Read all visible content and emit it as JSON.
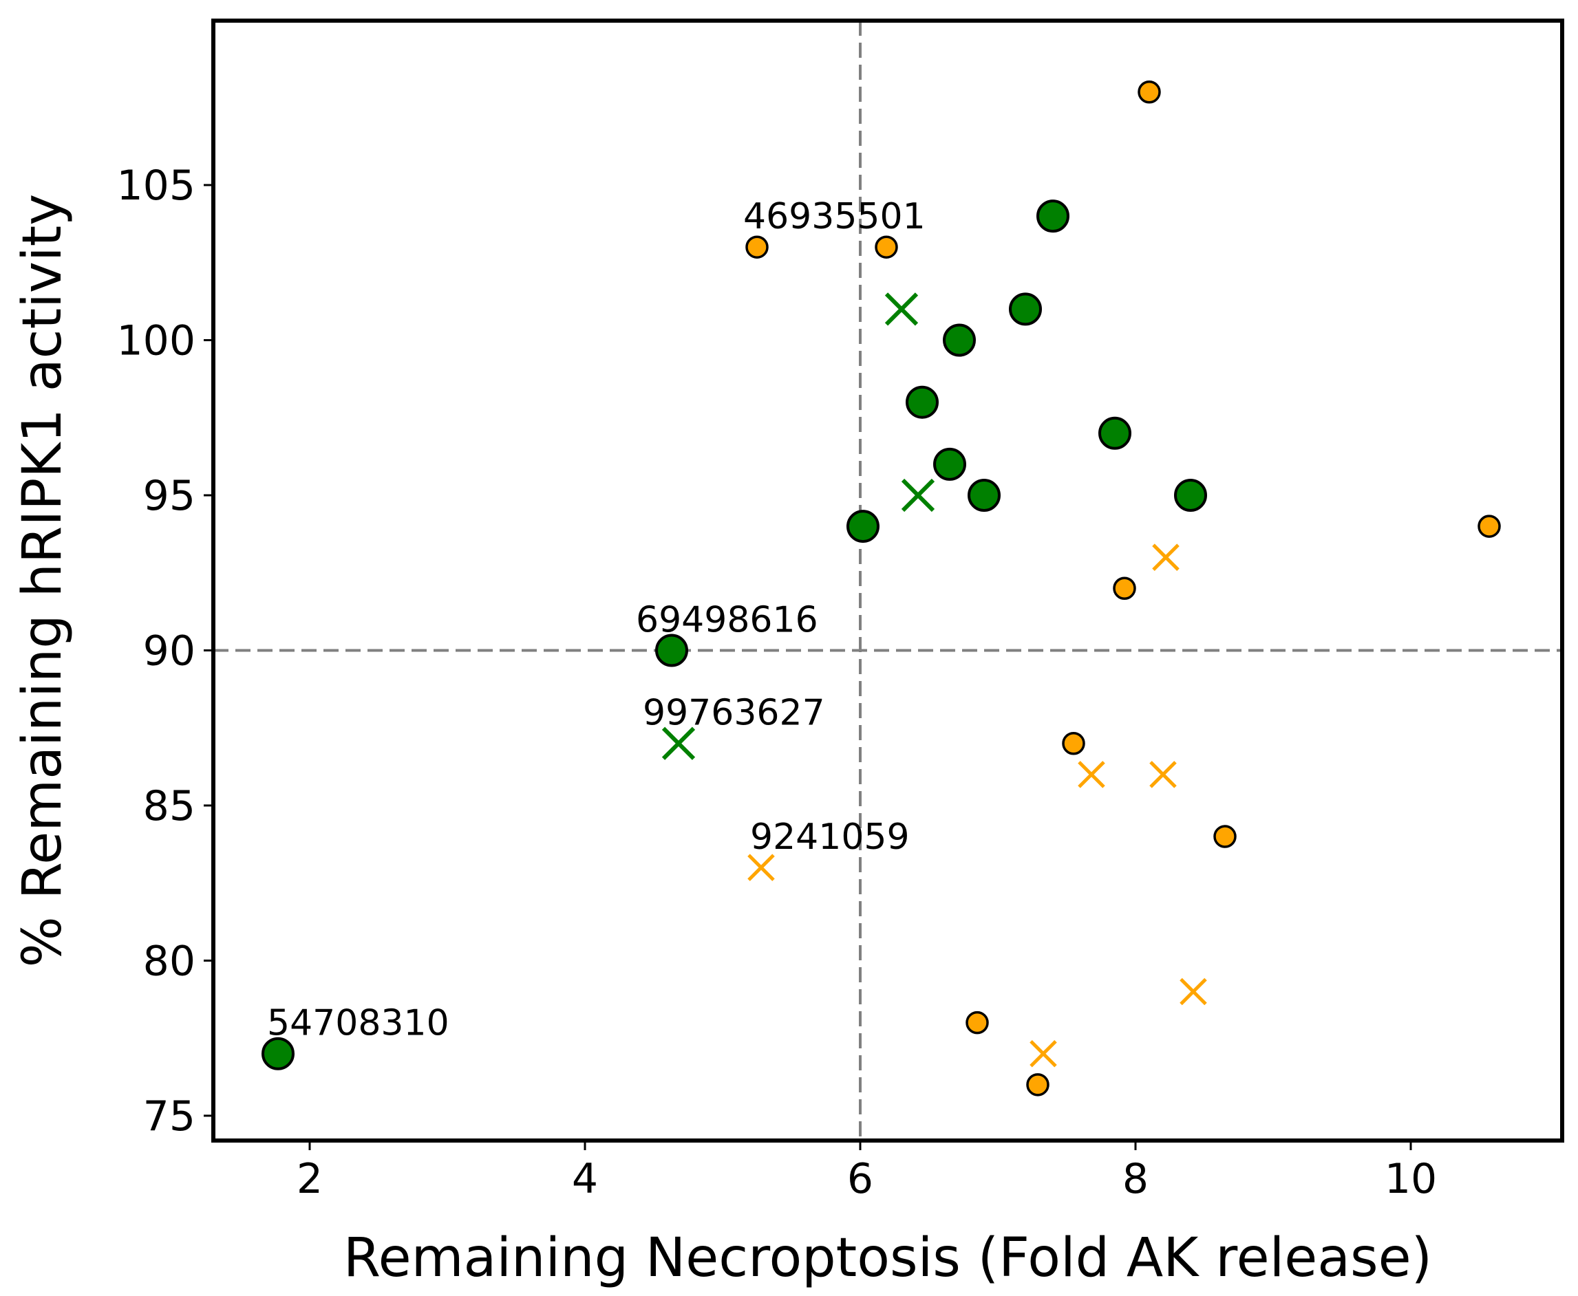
{
  "chart_data": {
    "type": "scatter",
    "title": "",
    "xlabel": "Remaining Necroptosis (Fold AK release)",
    "ylabel": "% Remaining hRIPK1 activity",
    "xlim": [
      1.3,
      11.1
    ],
    "ylim": [
      74.2,
      110.3
    ],
    "xticks": [
      2,
      4,
      6,
      8,
      10
    ],
    "yticks": [
      75,
      80,
      85,
      90,
      95,
      100,
      105
    ],
    "grid": false,
    "threshold_lines": {
      "x": 6,
      "y": 90
    },
    "colors": {
      "green": "#008000",
      "orange": "#FFA500",
      "threshold": "#808080",
      "edge": "#000000"
    },
    "series": [
      {
        "name": "green-circle-large",
        "marker": "circle-large",
        "color": "#008000",
        "points": [
          {
            "x": 7.4,
            "y": 104
          },
          {
            "x": 7.2,
            "y": 101
          },
          {
            "x": 6.72,
            "y": 100
          },
          {
            "x": 6.45,
            "y": 98
          },
          {
            "x": 7.85,
            "y": 97
          },
          {
            "x": 6.65,
            "y": 96
          },
          {
            "x": 6.9,
            "y": 95
          },
          {
            "x": 8.4,
            "y": 95
          },
          {
            "x": 6.02,
            "y": 94
          },
          {
            "x": 4.63,
            "y": 90
          },
          {
            "x": 1.77,
            "y": 77
          }
        ]
      },
      {
        "name": "green-x",
        "marker": "x",
        "color": "#008000",
        "points": [
          {
            "x": 6.3,
            "y": 101
          },
          {
            "x": 6.42,
            "y": 95
          },
          {
            "x": 4.68,
            "y": 87
          }
        ]
      },
      {
        "name": "orange-circle-small",
        "marker": "circle-small",
        "color": "#FFA500",
        "points": [
          {
            "x": 8.1,
            "y": 108
          },
          {
            "x": 5.25,
            "y": 103
          },
          {
            "x": 6.19,
            "y": 103
          },
          {
            "x": 10.57,
            "y": 94
          },
          {
            "x": 7.92,
            "y": 92
          },
          {
            "x": 7.55,
            "y": 87
          },
          {
            "x": 8.65,
            "y": 84
          },
          {
            "x": 6.85,
            "y": 78
          },
          {
            "x": 7.29,
            "y": 76
          }
        ]
      },
      {
        "name": "orange-x",
        "marker": "x",
        "color": "#FFA500",
        "points": [
          {
            "x": 8.22,
            "y": 93
          },
          {
            "x": 7.68,
            "y": 86
          },
          {
            "x": 8.2,
            "y": 86
          },
          {
            "x": 5.28,
            "y": 83
          },
          {
            "x": 8.42,
            "y": 79
          },
          {
            "x": 7.33,
            "y": 77
          }
        ]
      }
    ],
    "annotations": [
      {
        "text": "46935501",
        "x": 5.15,
        "y": 103.6
      },
      {
        "text": "69498616",
        "x": 4.37,
        "y": 90.6
      },
      {
        "text": "99763627",
        "x": 4.42,
        "y": 87.6
      },
      {
        "text": "9241059",
        "x": 5.2,
        "y": 83.6
      },
      {
        "text": "54708310",
        "x": 1.69,
        "y": 77.6
      }
    ]
  }
}
